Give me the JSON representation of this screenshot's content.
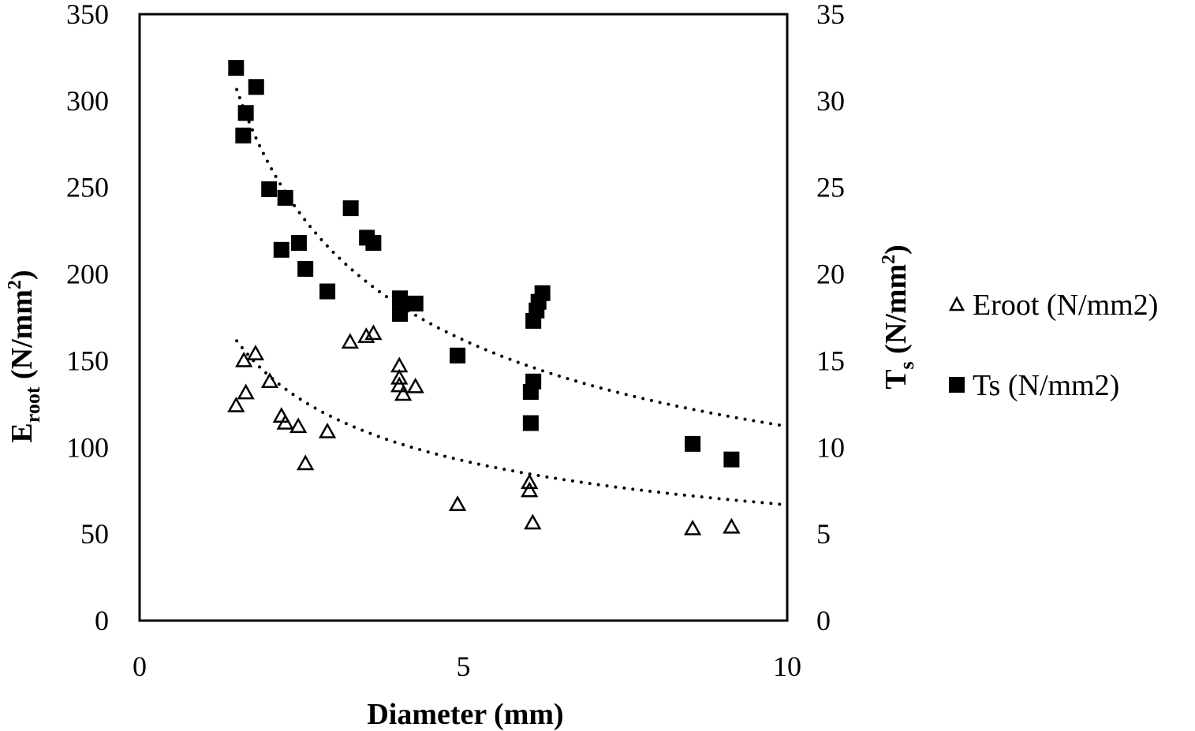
{
  "chart_data": {
    "type": "scatter",
    "xlabel": "Diameter (mm)",
    "ylabel": {
      "main": "E",
      "sub": "root",
      "unit": " (N/mm",
      "sup": "2",
      "close": ")"
    },
    "y2label": {
      "main": "T",
      "sub": "s",
      "unit": " (N/mm",
      "sup": "2",
      "close": ")"
    },
    "xlim": [
      0,
      10
    ],
    "ylim": [
      0,
      350
    ],
    "y2lim": [
      0,
      35
    ],
    "xticks": [
      "0",
      "5",
      "10"
    ],
    "yticks": [
      "0",
      "50",
      "100",
      "150",
      "200",
      "250",
      "300",
      "350"
    ],
    "y2ticks": [
      "0",
      "5",
      "10",
      "15",
      "20",
      "25",
      "30",
      "35"
    ],
    "grid": false,
    "legend_position": "right",
    "series": [
      {
        "name": "Eroot (N/mm2)",
        "axis": "left",
        "marker": "open-triangle",
        "points": [
          [
            1.49,
            124
          ],
          [
            1.61,
            150
          ],
          [
            1.64,
            131.5
          ],
          [
            1.79,
            154
          ],
          [
            2.01,
            138
          ],
          [
            2.19,
            118
          ],
          [
            2.25,
            114
          ],
          [
            2.45,
            112
          ],
          [
            2.9,
            109
          ],
          [
            2.56,
            90.6
          ],
          [
            3.25,
            160.7
          ],
          [
            3.5,
            164
          ],
          [
            3.61,
            165.7
          ],
          [
            4.01,
            147
          ],
          [
            4.01,
            140
          ],
          [
            4.01,
            135.6
          ],
          [
            4.07,
            130.6
          ],
          [
            4.26,
            135
          ],
          [
            4.91,
            67
          ],
          [
            6.02,
            79.7
          ],
          [
            6.02,
            75
          ],
          [
            6.07,
            56.4
          ],
          [
            8.54,
            53
          ],
          [
            9.14,
            54
          ]
        ],
        "trendline": {
          "type": "power",
          "a": 195,
          "b": -0.465,
          "x_range": [
            1.5,
            10
          ]
        }
      },
      {
        "name": "Ts (N/mm2)",
        "axis": "right",
        "marker": "filled-square",
        "points": [
          [
            1.49,
            31.9
          ],
          [
            1.8,
            30.8
          ],
          [
            1.64,
            29.3
          ],
          [
            1.6,
            28.0
          ],
          [
            2.0,
            24.9
          ],
          [
            2.25,
            24.4
          ],
          [
            3.26,
            23.8
          ],
          [
            3.51,
            22.1
          ],
          [
            3.61,
            21.8
          ],
          [
            2.46,
            21.8
          ],
          [
            2.19,
            21.4
          ],
          [
            2.56,
            20.3
          ],
          [
            2.9,
            19.0
          ],
          [
            4.02,
            18.6
          ],
          [
            4.26,
            18.3
          ],
          [
            4.02,
            17.7
          ],
          [
            4.91,
            15.3
          ],
          [
            6.22,
            18.9
          ],
          [
            6.16,
            18.4
          ],
          [
            6.13,
            17.9
          ],
          [
            6.08,
            17.3
          ],
          [
            6.08,
            13.8
          ],
          [
            6.04,
            13.2
          ],
          [
            6.04,
            11.4
          ],
          [
            8.54,
            10.2
          ],
          [
            9.14,
            9.3
          ]
        ],
        "trendline": {
          "type": "power",
          "a": 38.0,
          "b": -0.53,
          "x_range": [
            1.5,
            10
          ]
        }
      }
    ]
  }
}
